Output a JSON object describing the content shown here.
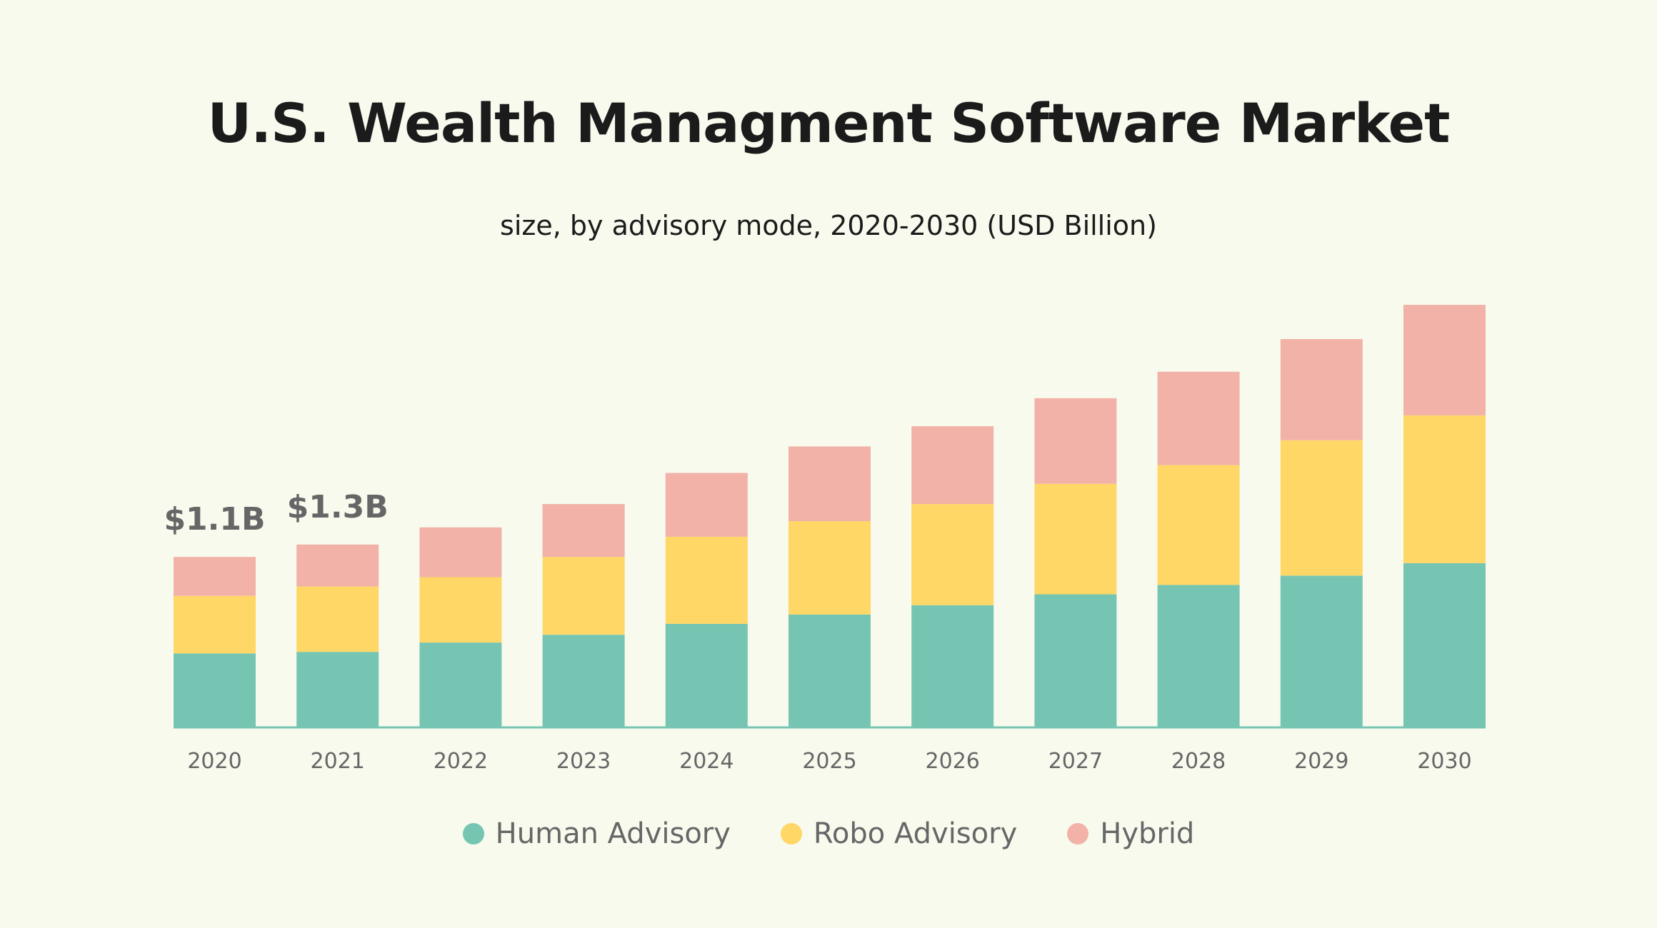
{
  "chart_data": {
    "type": "bar",
    "stacked": true,
    "title": "U.S. Wealth Managment Software Market",
    "subtitle": "size, by advisory mode, 2020-2030 (USD Billion)",
    "categories": [
      "2020",
      "2021",
      "2022",
      "2023",
      "2024",
      "2025",
      "2026",
      "2027",
      "2028",
      "2029",
      "2030"
    ],
    "series": [
      {
        "name": "Human Advisory",
        "color": "#76C5B2",
        "values": [
          0.48,
          0.49,
          0.55,
          0.6,
          0.67,
          0.73,
          0.79,
          0.86,
          0.92,
          0.98,
          1.06
        ]
      },
      {
        "name": "Robo Advisory",
        "color": "#FFD766",
        "values": [
          0.37,
          0.42,
          0.42,
          0.5,
          0.56,
          0.6,
          0.65,
          0.71,
          0.77,
          0.87,
          0.95
        ]
      },
      {
        "name": "Hybrid",
        "color": "#F2B2A8",
        "values": [
          0.25,
          0.27,
          0.32,
          0.34,
          0.41,
          0.48,
          0.5,
          0.55,
          0.6,
          0.65,
          0.71
        ]
      }
    ],
    "annotations": [
      {
        "category": "2020",
        "text": "$1.1B"
      },
      {
        "category": "2021",
        "text": "$1.3B"
      }
    ],
    "ylim": [
      0,
      2.8
    ],
    "grid": false,
    "y_axis_shown": false,
    "legend_position": "bottom",
    "baseline_color": "#76C5B2",
    "background": "#F8FAEE"
  }
}
